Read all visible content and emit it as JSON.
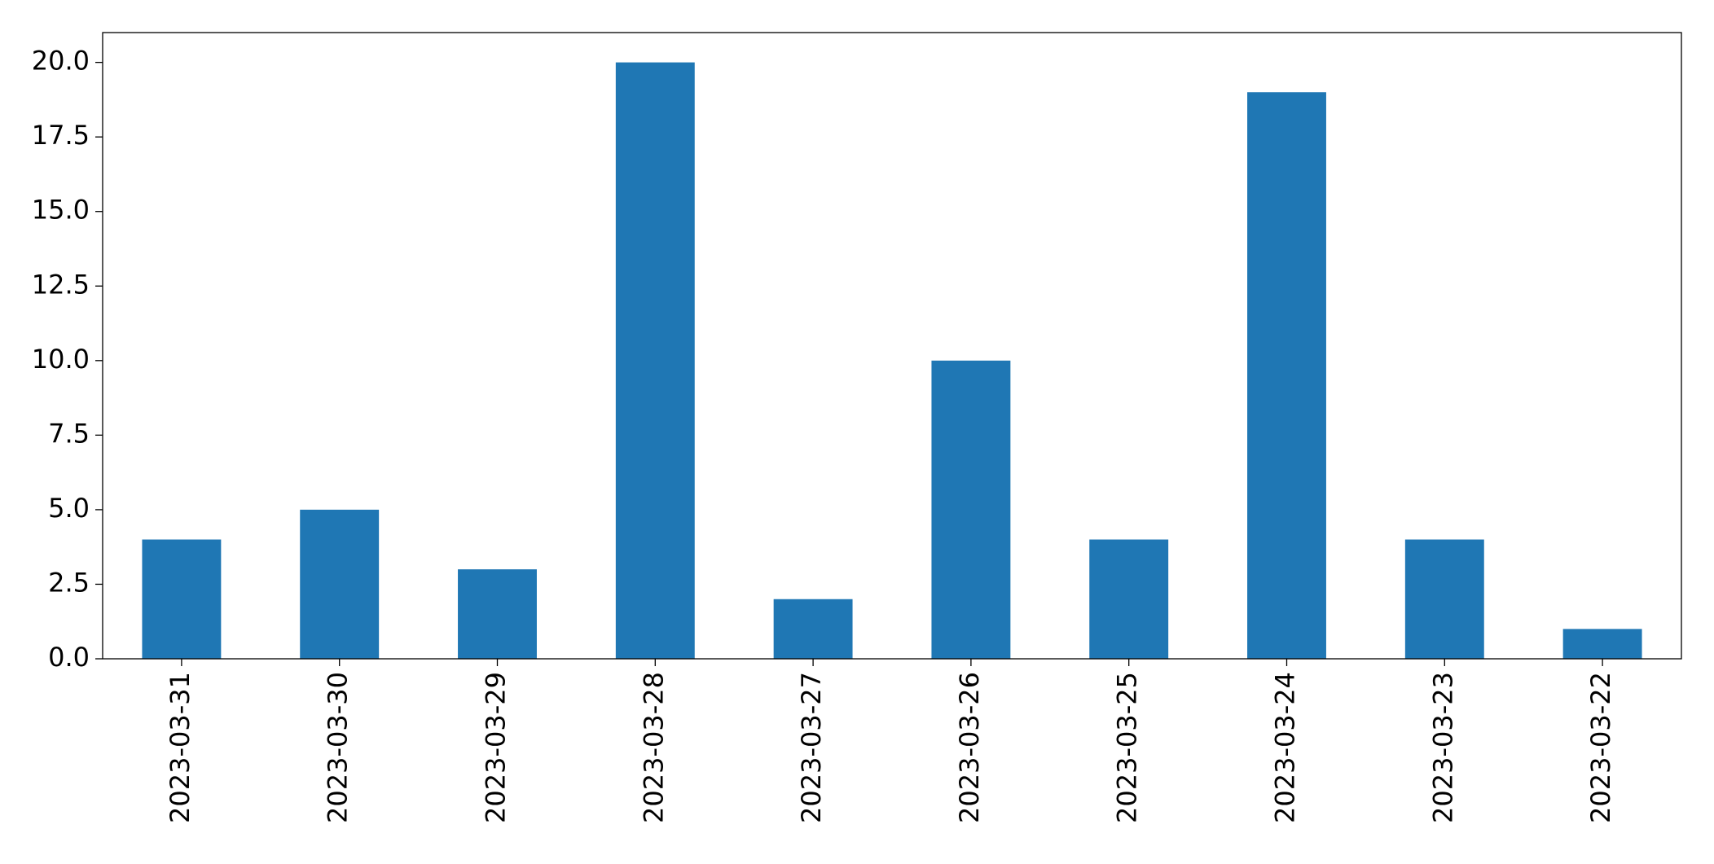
{
  "chart_data": {
    "type": "bar",
    "categories": [
      "2023-03-31",
      "2023-03-30",
      "2023-03-29",
      "2023-03-28",
      "2023-03-27",
      "2023-03-26",
      "2023-03-25",
      "2023-03-24",
      "2023-03-23",
      "2023-03-22"
    ],
    "values": [
      4,
      5,
      3,
      20,
      2,
      10,
      4,
      19,
      4,
      1
    ],
    "color": "#1f77b4",
    "ylim": [
      0,
      21
    ],
    "yticks": [
      {
        "value": 0,
        "label": "0.0"
      },
      {
        "value": 2.5,
        "label": "2.5"
      },
      {
        "value": 5,
        "label": "5.0"
      },
      {
        "value": 7.5,
        "label": "7.5"
      },
      {
        "value": 10,
        "label": "10.0"
      },
      {
        "value": 12.5,
        "label": "12.5"
      },
      {
        "value": 15,
        "label": "15.0"
      },
      {
        "value": 17.5,
        "label": "17.5"
      },
      {
        "value": 20,
        "label": "20.0"
      }
    ],
    "grid": false
  }
}
